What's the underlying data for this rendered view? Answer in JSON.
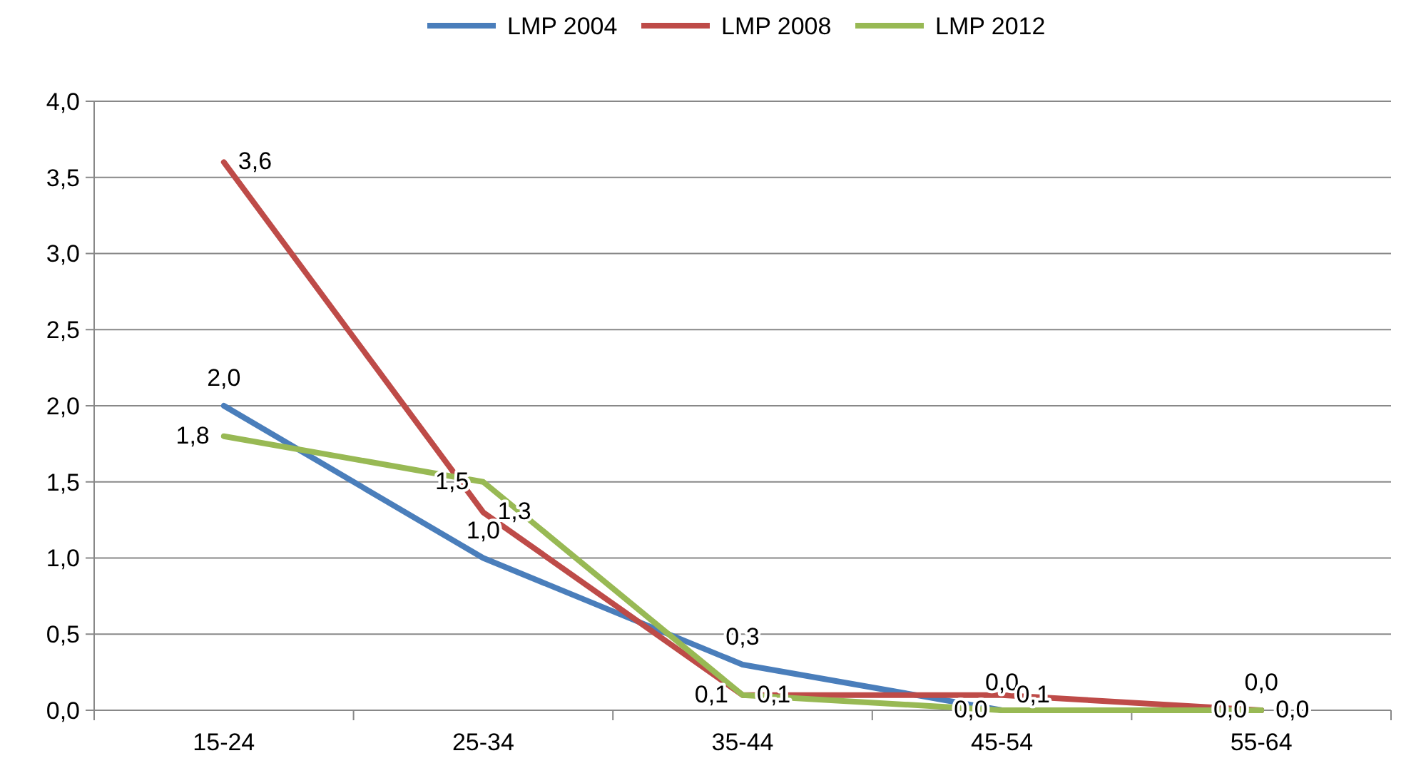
{
  "chart_data": {
    "type": "line",
    "categories": [
      "15-24",
      "25-34",
      "35-44",
      "45-54",
      "55-64"
    ],
    "series": [
      {
        "name": "LMP 2004",
        "color": "#4a7ebb",
        "values": [
          2.0,
          1.0,
          0.3,
          0.0,
          0.0
        ],
        "value_labels": [
          "2,0",
          "1,0",
          "0,3",
          "0,0",
          "0,0"
        ]
      },
      {
        "name": "LMP 2008",
        "color": "#be4b48",
        "values": [
          3.6,
          1.3,
          0.1,
          0.1,
          0.0
        ],
        "value_labels": [
          "3,6",
          "1,3",
          "0,1",
          "0,1",
          "0,0"
        ]
      },
      {
        "name": "LMP 2012",
        "color": "#98b954",
        "values": [
          1.8,
          1.5,
          0.1,
          0.0,
          0.0
        ],
        "value_labels": [
          "1,8",
          "1,5",
          "0,1",
          "0,0",
          "0,0"
        ]
      }
    ],
    "ylim": [
      0,
      4
    ],
    "yticks": [
      {
        "value": 0,
        "label": "0,0"
      },
      {
        "value": 0.5,
        "label": "0,5"
      },
      {
        "value": 1,
        "label": "1,0"
      },
      {
        "value": 1.5,
        "label": "1,5"
      },
      {
        "value": 2,
        "label": "2,0"
      },
      {
        "value": 2.5,
        "label": "2,5"
      },
      {
        "value": 3,
        "label": "3,0"
      },
      {
        "value": 3.5,
        "label": "3,5"
      },
      {
        "value": 4,
        "label": "4,0"
      }
    ],
    "grid": "y",
    "legend": "top",
    "marker": "none",
    "line_style": "solid"
  }
}
